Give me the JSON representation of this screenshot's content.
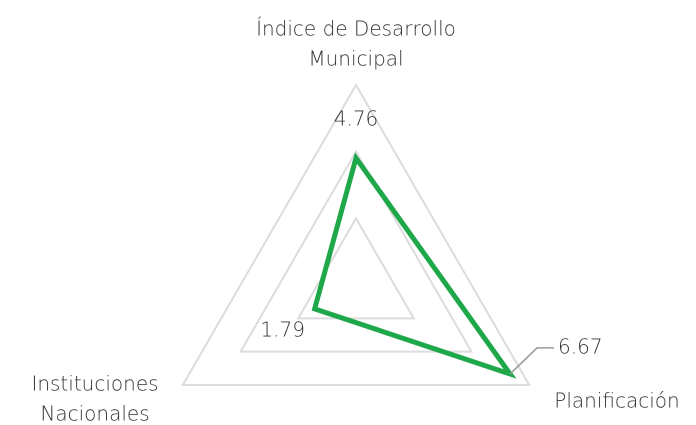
{
  "chart_data": {
    "type": "radar",
    "categories": [
      [
        "Índice de Desarrollo",
        "Municipal"
      ],
      [
        "Planificación"
      ],
      [
        "Instituciones",
        "Nacionales"
      ]
    ],
    "series": [
      {
        "color": "#1fa84a",
        "values": [
          4.76,
          6.67,
          1.79
        ]
      }
    ],
    "rlim": [
      0,
      7.5
    ],
    "rticks": [
      2.5,
      5,
      7.5
    ],
    "grid": true,
    "grid_color": "#dcdcdc"
  }
}
